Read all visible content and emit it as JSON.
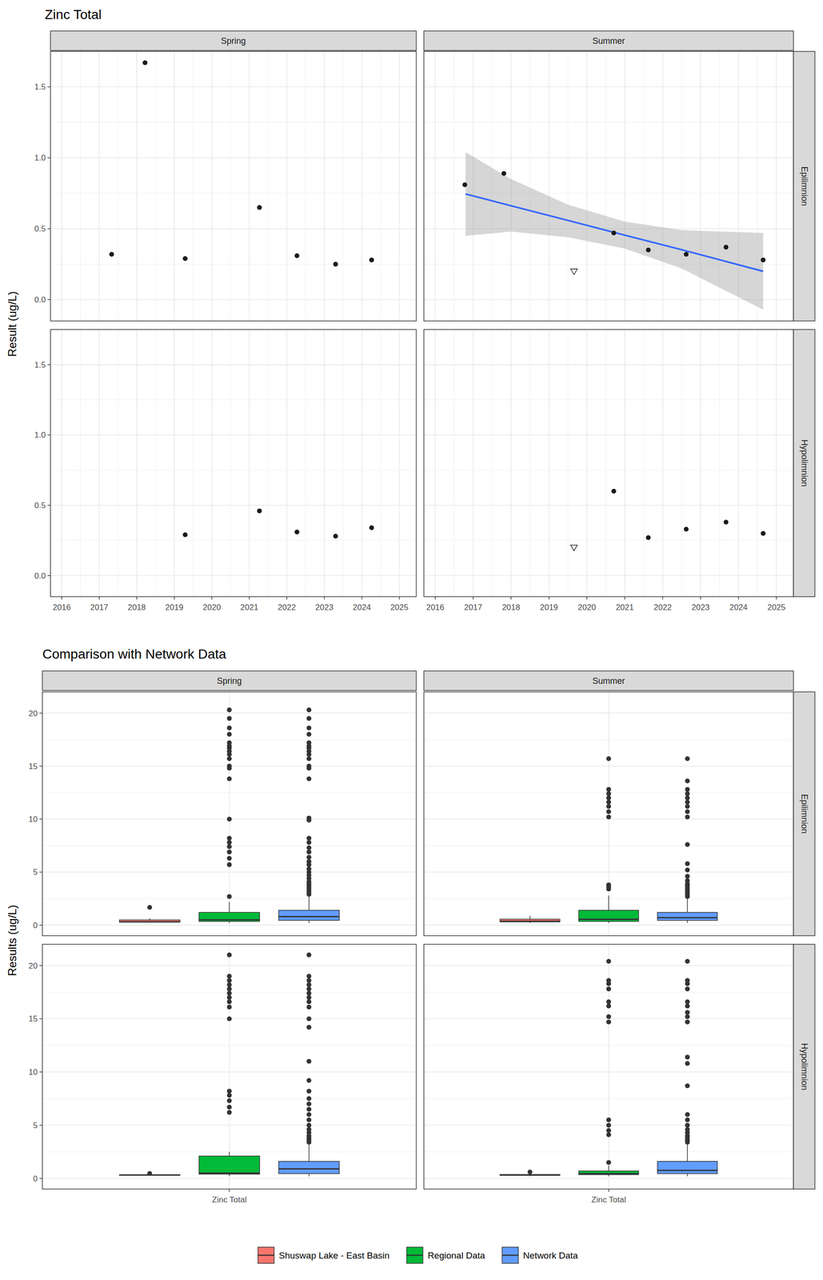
{
  "chart_data": [
    {
      "type": "scatter",
      "title": "Zinc Total",
      "y_label": "Result (ug/L)",
      "columns": [
        "Spring",
        "Summer"
      ],
      "rows": [
        "Epilimnion",
        "Hypolimnion"
      ],
      "xlim": [
        2015.7,
        2025.45
      ],
      "xticks": [
        2016,
        2017,
        2018,
        2019,
        2020,
        2021,
        2022,
        2023,
        2024,
        2025
      ],
      "ylim": [
        -0.15,
        1.75
      ],
      "yticks": [
        {
          "value": 0,
          "label": "0.0"
        },
        {
          "value": 0.5,
          "label": "0.5"
        },
        {
          "value": 1,
          "label": "1.0"
        },
        {
          "value": 1.5,
          "label": "1.5"
        }
      ],
      "grid": true,
      "panels": [
        {
          "column": "Spring",
          "row": "Epilimnion",
          "series": [
            {
              "marker": "circle",
              "x": [
                2017.33,
                2018.22,
                2019.29,
                2021.27,
                2022.27,
                2023.3,
                2024.26
              ],
              "values": [
                0.32,
                1.67,
                0.29,
                0.65,
                0.31,
                0.25,
                0.28
              ]
            }
          ]
        },
        {
          "column": "Summer",
          "row": "Epilimnion",
          "series": [
            {
              "marker": "circle",
              "x": [
                2016.78,
                2017.81,
                2020.71,
                2021.62,
                2022.62,
                2023.67,
                2024.65
              ],
              "values": [
                0.81,
                0.89,
                0.47,
                0.35,
                0.32,
                0.37,
                0.28
              ]
            },
            {
              "marker": "triangle-open",
              "x": [
                2019.66
              ],
              "values": [
                0.2
              ]
            }
          ],
          "trend": {
            "color": "#3366FF",
            "x": [
              2016.8,
              2018,
              2019.5,
              2021,
              2022.5,
              2024.65
            ],
            "values": [
              0.745,
              0.662,
              0.559,
              0.455,
              0.352,
              0.2
            ],
            "lower": [
              0.45,
              0.48,
              0.44,
              0.36,
              0.22,
              -0.07
            ],
            "upper": [
              1.04,
              0.85,
              0.67,
              0.55,
              0.49,
              0.47
            ]
          }
        },
        {
          "column": "Spring",
          "row": "Hypolimnion",
          "series": [
            {
              "marker": "circle",
              "x": [
                2019.29,
                2021.27,
                2022.27,
                2023.3,
                2024.26
              ],
              "values": [
                0.29,
                0.46,
                0.31,
                0.28,
                0.34
              ]
            }
          ]
        },
        {
          "column": "Summer",
          "row": "Hypolimnion",
          "series": [
            {
              "marker": "circle",
              "x": [
                2020.71,
                2021.62,
                2022.62,
                2023.67,
                2024.65
              ],
              "values": [
                0.6,
                0.27,
                0.33,
                0.38,
                0.3
              ]
            },
            {
              "marker": "triangle-open",
              "x": [
                2019.66
              ],
              "values": [
                0.2
              ]
            }
          ]
        }
      ]
    },
    {
      "type": "box",
      "title": "Comparison with Network Data",
      "y_label": "Results (ug/L)",
      "categories": [
        "Zinc Total"
      ],
      "columns": [
        "Spring",
        "Summer"
      ],
      "rows": [
        "Epilimnion",
        "Hypolimnion"
      ],
      "ylim": [
        -1,
        22
      ],
      "yticks": [
        0,
        5,
        10,
        15,
        20
      ],
      "grid": true,
      "legend": "bottom",
      "series": [
        {
          "name": "Shuswap Lake - East Basin",
          "color": "#F8766D"
        },
        {
          "name": "Regional Data",
          "color": "#00BA38"
        },
        {
          "name": "Network Data",
          "color": "#619CFF"
        }
      ],
      "panels": [
        {
          "column": "Spring",
          "row": "Epilimnion",
          "boxes": [
            {
              "min": 0.25,
              "q1": 0.285,
              "median": 0.31,
              "q3": 0.485,
              "max": 0.65,
              "outliers": [
                1.67
              ]
            },
            {
              "min": 0.2,
              "q1": 0.35,
              "median": 0.5,
              "q3": 1.2,
              "max": 2.2,
              "outliers": [
                2.7,
                5.7,
                6.3,
                6.9,
                7.4,
                7.8,
                8.2,
                10.0,
                13.8,
                14.8,
                15.0,
                15.7,
                16.1,
                16.4,
                16.7,
                16.9,
                17.2,
                18.0,
                18.6,
                19.5,
                20.3
              ]
            },
            {
              "min": 0.2,
              "q1": 0.45,
              "median": 0.8,
              "q3": 1.4,
              "max": 2.8,
              "outliers": [
                2.9,
                3.1,
                3.3,
                3.5,
                3.7,
                3.9,
                4.1,
                4.4,
                4.7,
                5.0,
                5.3,
                5.7,
                6.0,
                6.4,
                6.9,
                7.3,
                7.8,
                8.2,
                9.9,
                10.1,
                13.8,
                14.8,
                15.0,
                15.7,
                16.1,
                16.4,
                16.7,
                16.9,
                17.2,
                18.0,
                18.6,
                19.5,
                20.3
              ]
            }
          ]
        },
        {
          "column": "Summer",
          "row": "Epilimnion",
          "boxes": [
            {
              "min": 0.2,
              "q1": 0.31,
              "median": 0.36,
              "q3": 0.56,
              "max": 0.89,
              "outliers": []
            },
            {
              "min": 0.2,
              "q1": 0.35,
              "median": 0.55,
              "q3": 1.4,
              "max": 2.8,
              "outliers": [
                3.4,
                3.6,
                3.8,
                10.2,
                10.7,
                11.2,
                11.6,
                12.0,
                12.4,
                12.8,
                15.7
              ]
            },
            {
              "min": 0.2,
              "q1": 0.45,
              "median": 0.7,
              "q3": 1.2,
              "max": 2.5,
              "outliers": [
                2.7,
                2.9,
                3.1,
                3.3,
                3.5,
                3.7,
                3.9,
                4.2,
                4.6,
                5.2,
                5.8,
                7.6,
                10.2,
                10.7,
                11.2,
                11.6,
                12.0,
                12.4,
                12.8,
                13.6,
                15.7
              ]
            }
          ]
        },
        {
          "column": "Spring",
          "row": "Hypolimnion",
          "boxes": [
            {
              "min": 0.28,
              "q1": 0.29,
              "median": 0.31,
              "q3": 0.34,
              "max": 0.34,
              "outliers": [
                0.46
              ]
            },
            {
              "min": 0.2,
              "q1": 0.4,
              "median": 0.5,
              "q3": 2.1,
              "max": 2.5,
              "outliers": [
                6.2,
                6.7,
                7.3,
                7.8,
                8.2,
                15.0,
                16.1,
                16.6,
                17.0,
                17.4,
                17.8,
                18.2,
                18.6,
                19.0,
                21.0
              ]
            },
            {
              "min": 0.2,
              "q1": 0.45,
              "median": 0.9,
              "q3": 1.6,
              "max": 3.2,
              "outliers": [
                3.4,
                3.6,
                3.8,
                4.0,
                4.3,
                4.6,
                5.0,
                5.5,
                6.0,
                6.5,
                7.0,
                7.5,
                8.2,
                9.2,
                11.0,
                14.2,
                15.0,
                16.1,
                16.6,
                17.0,
                17.4,
                17.8,
                18.2,
                18.6,
                19.0,
                21.0
              ]
            }
          ]
        },
        {
          "column": "Summer",
          "row": "Hypolimnion",
          "boxes": [
            {
              "min": 0.2,
              "q1": 0.28,
              "median": 0.315,
              "q3": 0.37,
              "max": 0.38,
              "outliers": [
                0.6
              ]
            },
            {
              "min": 0.2,
              "q1": 0.35,
              "median": 0.45,
              "q3": 0.7,
              "max": 1.2,
              "outliers": [
                1.5,
                4.1,
                4.5,
                5.0,
                5.5,
                14.7,
                15.2,
                16.2,
                16.6,
                17.8,
                18.3,
                18.6,
                20.4
              ]
            },
            {
              "min": 0.2,
              "q1": 0.45,
              "median": 0.75,
              "q3": 1.6,
              "max": 3.2,
              "outliers": [
                3.4,
                3.6,
                3.8,
                4.0,
                4.3,
                4.6,
                5.0,
                5.5,
                6.0,
                8.7,
                10.8,
                11.4,
                14.7,
                15.2,
                15.6,
                16.2,
                16.6,
                17.8,
                18.3,
                18.6,
                20.4
              ]
            }
          ]
        }
      ]
    }
  ]
}
